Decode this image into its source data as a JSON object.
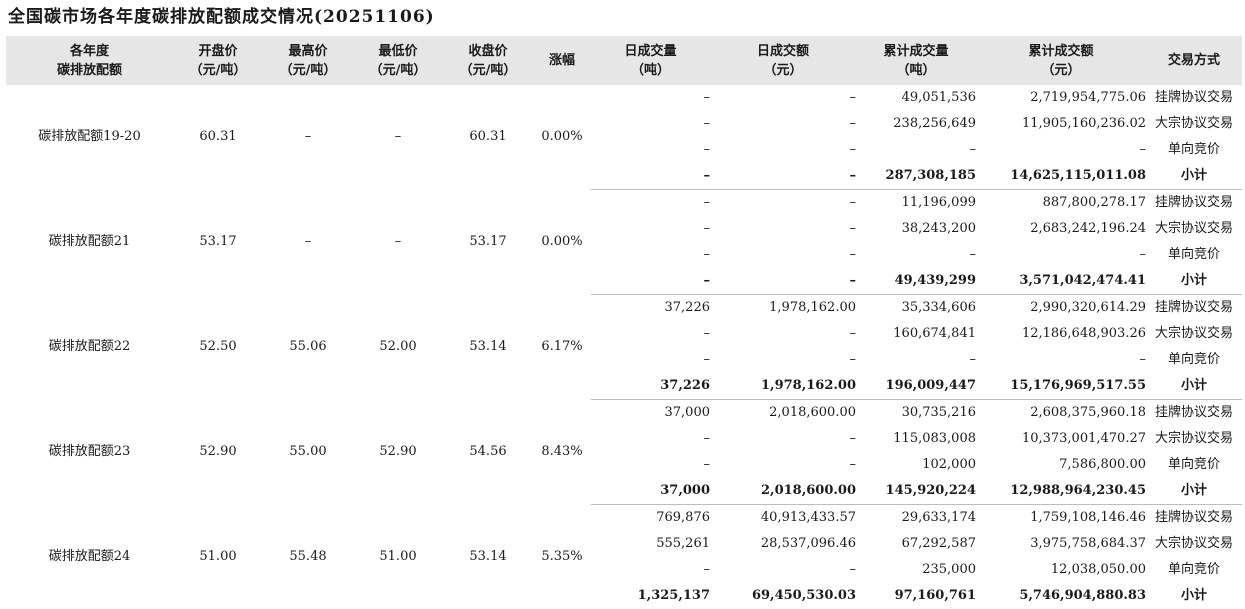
{
  "title": "全国碳市场各年度碳排放配额成交情况(20251106)",
  "headers": {
    "allowance": [
      "各年度",
      "碳排放配额"
    ],
    "open": [
      "开盘价",
      "（元/吨）"
    ],
    "high": [
      "最高价",
      "（元/吨）"
    ],
    "low": [
      "最低价",
      "（元/吨）"
    ],
    "close": [
      "收盘价",
      "（元/吨）"
    ],
    "change": [
      "涨幅"
    ],
    "day_vol": [
      "日成交量",
      "（吨）"
    ],
    "day_amt": [
      "日成交额",
      "（元）"
    ],
    "cum_vol": [
      "累计成交量",
      "（吨）"
    ],
    "cum_amt": [
      "累计成交额",
      "（元）"
    ],
    "method": [
      "交易方式"
    ]
  },
  "groups": [
    {
      "name": "碳排放配额19-20",
      "open": "60.31",
      "high": "–",
      "low": "–",
      "close": "60.31",
      "change": "0.00%",
      "rows": [
        {
          "day_vol": "–",
          "day_amt": "–",
          "cum_vol": "49,051,536",
          "cum_amt": "2,719,954,775.06",
          "method": "挂牌协议交易"
        },
        {
          "day_vol": "–",
          "day_amt": "–",
          "cum_vol": "238,256,649",
          "cum_amt": "11,905,160,236.02",
          "method": "大宗协议交易"
        },
        {
          "day_vol": "–",
          "day_amt": "–",
          "cum_vol": "–",
          "cum_amt": "–",
          "method": "单向竞价"
        },
        {
          "day_vol": "–",
          "day_amt": "–",
          "cum_vol": "287,308,185",
          "cum_amt": "14,625,115,011.08",
          "method": "小计",
          "subtotal": true
        }
      ]
    },
    {
      "name": "碳排放配额21",
      "open": "53.17",
      "high": "–",
      "low": "–",
      "close": "53.17",
      "change": "0.00%",
      "rows": [
        {
          "day_vol": "–",
          "day_amt": "–",
          "cum_vol": "11,196,099",
          "cum_amt": "887,800,278.17",
          "method": "挂牌协议交易"
        },
        {
          "day_vol": "–",
          "day_amt": "–",
          "cum_vol": "38,243,200",
          "cum_amt": "2,683,242,196.24",
          "method": "大宗协议交易"
        },
        {
          "day_vol": "–",
          "day_amt": "–",
          "cum_vol": "–",
          "cum_amt": "–",
          "method": "单向竞价"
        },
        {
          "day_vol": "–",
          "day_amt": "–",
          "cum_vol": "49,439,299",
          "cum_amt": "3,571,042,474.41",
          "method": "小计",
          "subtotal": true
        }
      ]
    },
    {
      "name": "碳排放配额22",
      "open": "52.50",
      "high": "55.06",
      "low": "52.00",
      "close": "53.14",
      "change": "6.17%",
      "rows": [
        {
          "day_vol": "37,226",
          "day_amt": "1,978,162.00",
          "cum_vol": "35,334,606",
          "cum_amt": "2,990,320,614.29",
          "method": "挂牌协议交易"
        },
        {
          "day_vol": "–",
          "day_amt": "–",
          "cum_vol": "160,674,841",
          "cum_amt": "12,186,648,903.26",
          "method": "大宗协议交易"
        },
        {
          "day_vol": "–",
          "day_amt": "–",
          "cum_vol": "–",
          "cum_amt": "–",
          "method": "单向竞价"
        },
        {
          "day_vol": "37,226",
          "day_amt": "1,978,162.00",
          "cum_vol": "196,009,447",
          "cum_amt": "15,176,969,517.55",
          "method": "小计",
          "subtotal": true
        }
      ]
    },
    {
      "name": "碳排放配额23",
      "open": "52.90",
      "high": "55.00",
      "low": "52.90",
      "close": "54.56",
      "change": "8.43%",
      "rows": [
        {
          "day_vol": "37,000",
          "day_amt": "2,018,600.00",
          "cum_vol": "30,735,216",
          "cum_amt": "2,608,375,960.18",
          "method": "挂牌协议交易"
        },
        {
          "day_vol": "–",
          "day_amt": "–",
          "cum_vol": "115,083,008",
          "cum_amt": "10,373,001,470.27",
          "method": "大宗协议交易"
        },
        {
          "day_vol": "–",
          "day_amt": "–",
          "cum_vol": "102,000",
          "cum_amt": "7,586,800.00",
          "method": "单向竞价"
        },
        {
          "day_vol": "37,000",
          "day_amt": "2,018,600.00",
          "cum_vol": "145,920,224",
          "cum_amt": "12,988,964,230.45",
          "method": "小计",
          "subtotal": true
        }
      ]
    },
    {
      "name": "碳排放配额24",
      "open": "51.00",
      "high": "55.48",
      "low": "51.00",
      "close": "53.14",
      "change": "5.35%",
      "rows": [
        {
          "day_vol": "769,876",
          "day_amt": "40,913,433.57",
          "cum_vol": "29,633,174",
          "cum_amt": "1,759,108,146.46",
          "method": "挂牌协议交易"
        },
        {
          "day_vol": "555,261",
          "day_amt": "28,537,096.46",
          "cum_vol": "67,292,587",
          "cum_amt": "3,975,758,684.37",
          "method": "大宗协议交易"
        },
        {
          "day_vol": "–",
          "day_amt": "–",
          "cum_vol": "235,000",
          "cum_amt": "12,038,050.00",
          "method": "单向竞价"
        },
        {
          "day_vol": "1,325,137",
          "day_amt": "69,450,530.03",
          "cum_vol": "97,160,761",
          "cum_amt": "5,746,904,880.83",
          "method": "小计",
          "subtotal": true
        }
      ]
    }
  ]
}
